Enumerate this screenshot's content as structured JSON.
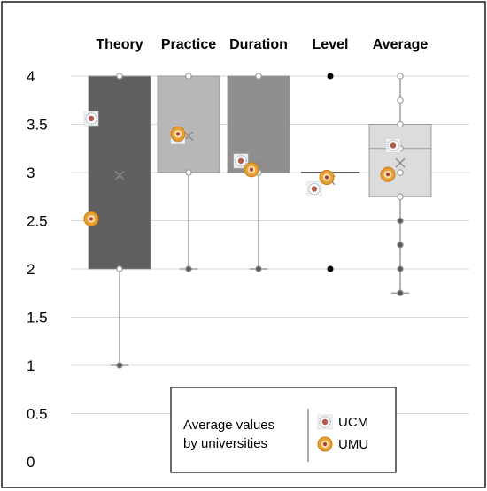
{
  "chart_data": {
    "type": "box",
    "title": "",
    "xlabel": "",
    "ylabel": "",
    "ylim": [
      0,
      4
    ],
    "yticks": [
      "0",
      "0.5",
      "1",
      "1.5",
      "2",
      "2.5",
      "3",
      "3.5",
      "4"
    ],
    "grid": true,
    "categories": [
      "Theory",
      "Practice",
      "Duration",
      "Level",
      "Average"
    ],
    "boxes": [
      {
        "category": "Theory",
        "min": 1,
        "q1": 2,
        "median": 4,
        "q3": 4,
        "max": 4,
        "mean": 2.97,
        "points": [
          1,
          2,
          4
        ],
        "color": "#606060"
      },
      {
        "category": "Practice",
        "min": 2,
        "q1": 3,
        "median": 4,
        "q3": 4,
        "max": 4,
        "mean": 3.38,
        "points": [
          2,
          3,
          4
        ],
        "color": "#b7b7b7"
      },
      {
        "category": "Duration",
        "min": 2,
        "q1": 3,
        "median": 4,
        "q3": 4,
        "max": 4,
        "mean": 3.1,
        "points": [
          2,
          3,
          4
        ],
        "color": "#8f8f8f"
      },
      {
        "category": "Level",
        "min": 3,
        "q1": 3,
        "median": 3,
        "q3": 3,
        "max": 3,
        "mean": 2.92,
        "outliers": [
          2,
          4
        ],
        "color": "#4d4d4d"
      },
      {
        "category": "Average",
        "min": 1.75,
        "q1": 2.75,
        "median": 3.25,
        "q3": 3.5,
        "max": 4,
        "mean": 3.1,
        "points": [
          1.75,
          2,
          2.25,
          2.5,
          2.75,
          3,
          3.25,
          3.5,
          3.75,
          4
        ],
        "color": "#dcdcdc"
      }
    ],
    "university_averages": [
      {
        "university": "UCM",
        "values": [
          3.56,
          3.37,
          3.12,
          2.83,
          3.28
        ],
        "color": "#a8a8c8"
      },
      {
        "university": "UMU",
        "values": [
          2.52,
          3.4,
          3.03,
          2.95,
          2.98
        ],
        "color": "#e8a030"
      }
    ],
    "legend": {
      "title_line1": "Average values",
      "title_line2": "by universities",
      "items": [
        "UCM",
        "UMU"
      ],
      "placement": "bottom-center"
    }
  }
}
